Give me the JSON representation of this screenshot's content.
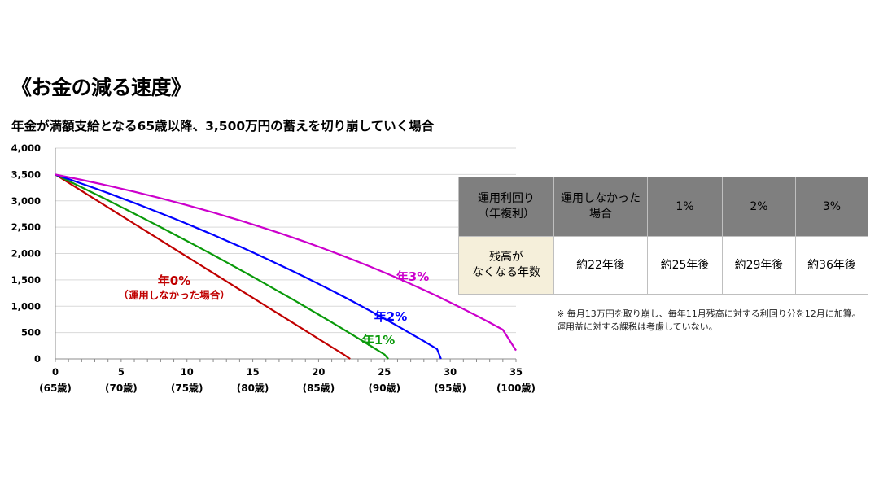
{
  "title": "《お金の減る速度》",
  "subtitle": "年金が満額支給となる65歳以降、3,500万円の蓄えを切り崩していく場合",
  "chart_data": {
    "type": "line",
    "x_ticks": [
      0,
      5,
      10,
      15,
      20,
      25,
      30,
      35
    ],
    "x_tick_labels": [
      "(65歳)",
      "(70歳)",
      "(75歳)",
      "(80歳)",
      "(85歳)",
      "(90歳)",
      "(95歳)",
      "(100歳)"
    ],
    "y_ticks": [
      0,
      500,
      1000,
      1500,
      2000,
      2500,
      3000,
      3500,
      4000
    ],
    "y_tick_labels": [
      "0",
      "500",
      "1,000",
      "1,500",
      "2,000",
      "2,500",
      "3,000",
      "3,500",
      "4,000"
    ],
    "xlim": [
      0,
      35
    ],
    "ylim": [
      0,
      4000
    ],
    "grid": "horizontal",
    "series": [
      {
        "name": "年0%",
        "sublabel": "（運用しなかった場合）",
        "color": "#c00000",
        "x": [
          0,
          1,
          2,
          3,
          4,
          5,
          6,
          7,
          8,
          9,
          10,
          11,
          12,
          13,
          14,
          15,
          16,
          17,
          18,
          19,
          20,
          21,
          22,
          22.4
        ],
        "y": [
          3500,
          3344,
          3188,
          3032,
          2876,
          2720,
          2564,
          2408,
          2252,
          2096,
          1940,
          1784,
          1628,
          1472,
          1316,
          1160,
          1004,
          848,
          692,
          536,
          380,
          224,
          68,
          0
        ]
      },
      {
        "name": "年1%",
        "color": "#0a9a0a",
        "x": [
          0,
          1,
          2,
          3,
          4,
          5,
          6,
          7,
          8,
          9,
          10,
          11,
          12,
          13,
          14,
          15,
          16,
          17,
          18,
          19,
          20,
          21,
          22,
          23,
          24,
          25,
          25.3
        ],
        "y": [
          3500,
          3379,
          3257,
          3134,
          3010,
          2884,
          2757,
          2629,
          2500,
          2369,
          2238,
          2105,
          1970,
          1834,
          1697,
          1558,
          1418,
          1276,
          1133,
          988,
          842,
          694,
          544,
          393,
          240,
          85,
          0
        ]
      },
      {
        "name": "年2%",
        "color": "#0000ff",
        "x": [
          0,
          1,
          2,
          3,
          4,
          5,
          6,
          7,
          8,
          9,
          10,
          11,
          12,
          13,
          14,
          15,
          16,
          17,
          18,
          19,
          20,
          21,
          22,
          23,
          24,
          25,
          26,
          27,
          28,
          29,
          29.3
        ],
        "y": [
          3500,
          3414,
          3327,
          3238,
          3147,
          3054,
          2960,
          2863,
          2765,
          2665,
          2563,
          2459,
          2353,
          2244,
          2134,
          2021,
          1906,
          1789,
          1670,
          1548,
          1424,
          1297,
          1168,
          1036,
          901,
          764,
          624,
          481,
          336,
          187,
          0
        ]
      },
      {
        "name": "年3%",
        "color": "#cc00cc",
        "x": [
          0,
          1,
          2,
          3,
          4,
          5,
          6,
          7,
          8,
          9,
          10,
          11,
          12,
          13,
          14,
          15,
          16,
          17,
          18,
          19,
          20,
          21,
          22,
          23,
          24,
          25,
          26,
          27,
          28,
          29,
          30,
          31,
          32,
          33,
          34,
          35
        ],
        "y": [
          3500,
          3449,
          3397,
          3343,
          3288,
          3231,
          3172,
          3111,
          3048,
          2984,
          2917,
          2848,
          2778,
          2705,
          2630,
          2552,
          2473,
          2390,
          2306,
          2219,
          2129,
          2037,
          1942,
          1844,
          1743,
          1639,
          1532,
          1422,
          1308,
          1192,
          1072,
          948,
          820,
          689,
          554,
          160
        ]
      }
    ]
  },
  "table": {
    "header": [
      "運用利回り\n（年複利）",
      "運用しなかった\n場合",
      "1%",
      "2%",
      "3%"
    ],
    "row_label": "残高が\nなくなる年数",
    "row_values": [
      "約22年後",
      "約25年後",
      "約29年後",
      "約36年後"
    ]
  },
  "note_line1": "※ 毎月13万円を取り崩し、毎年11月残高に対する利回り分を12月に加算。",
  "note_line2": "運用益に対する課税は考慮していない。"
}
